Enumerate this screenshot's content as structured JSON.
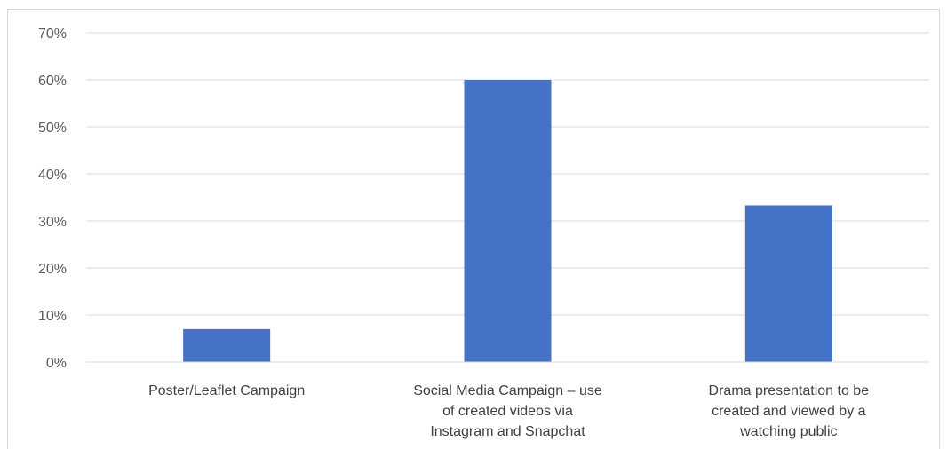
{
  "chart_data": {
    "type": "bar",
    "categories": [
      [
        "Poster/Leaflet Campaign"
      ],
      [
        "Social Media Campaign – use",
        "of created videos via",
        "Instagram and Snapchat"
      ],
      [
        "Drama presentation to be",
        "created and viewed by a",
        "watching public"
      ]
    ],
    "values": [
      0.07,
      0.6,
      0.333
    ],
    "y_ticks": [
      "0%",
      "10%",
      "20%",
      "30%",
      "40%",
      "50%",
      "60%",
      "70%"
    ],
    "ylim": [
      0,
      0.7
    ],
    "grid": true,
    "legend": "none",
    "bar_color": "#4472C4",
    "grid_color": "#d9d9d9",
    "title": "",
    "xlabel": "",
    "ylabel": ""
  }
}
